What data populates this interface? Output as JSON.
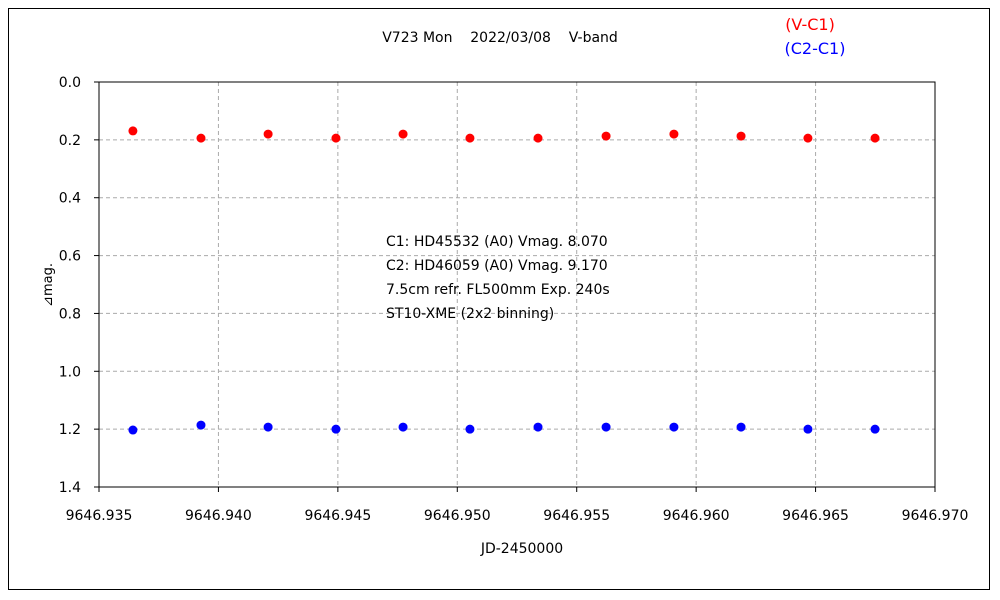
{
  "chart_data": {
    "type": "scatter",
    "title": "V723 Mon    2022/03/08    V-band",
    "xlabel": "JD-2450000",
    "ylabel": "⊿mag.",
    "xlim": [
      9646.935,
      9646.97
    ],
    "ylim": [
      0.0,
      1.4
    ],
    "y_inverted": true,
    "grid": true,
    "legend_placement": "top-right",
    "x_ticks": [
      "9646.935",
      "9646.940",
      "9646.945",
      "9646.950",
      "9646.955",
      "9646.960",
      "9646.965",
      "9646.970"
    ],
    "y_ticks": [
      "0.0",
      "0.2",
      "0.4",
      "0.6",
      "0.8",
      "1.0",
      "1.2",
      "1.4"
    ],
    "annotations": [
      "C1: HD45532 (A0) Vmag. 8.070",
      "C2: HD46059 (A0) Vmag. 9.170",
      "7.5cm refr. FL500mm  Exp. 240s",
      "ST10-XME (2x2 binning)"
    ],
    "series": [
      {
        "name": "(V-C1)",
        "color": "#ff0000",
        "x": [
          9646.93642,
          9646.93927,
          9646.94208,
          9646.94492,
          9646.94773,
          9646.95053,
          9646.95338,
          9646.95623,
          9646.95907,
          9646.96188,
          9646.96468,
          9646.96749
        ],
        "y": [
          0.169,
          0.194,
          0.18,
          0.194,
          0.18,
          0.194,
          0.194,
          0.187,
          0.18,
          0.187,
          0.194,
          0.194
        ]
      },
      {
        "name": "(C2-C1)",
        "color": "#0000ff",
        "x": [
          9646.93642,
          9646.93927,
          9646.94208,
          9646.94492,
          9646.94773,
          9646.95053,
          9646.95338,
          9646.95623,
          9646.95907,
          9646.96188,
          9646.96468,
          9646.96749
        ],
        "y": [
          1.203,
          1.186,
          1.193,
          1.2,
          1.193,
          1.2,
          1.193,
          1.193,
          1.193,
          1.193,
          1.2,
          1.2
        ]
      }
    ]
  }
}
